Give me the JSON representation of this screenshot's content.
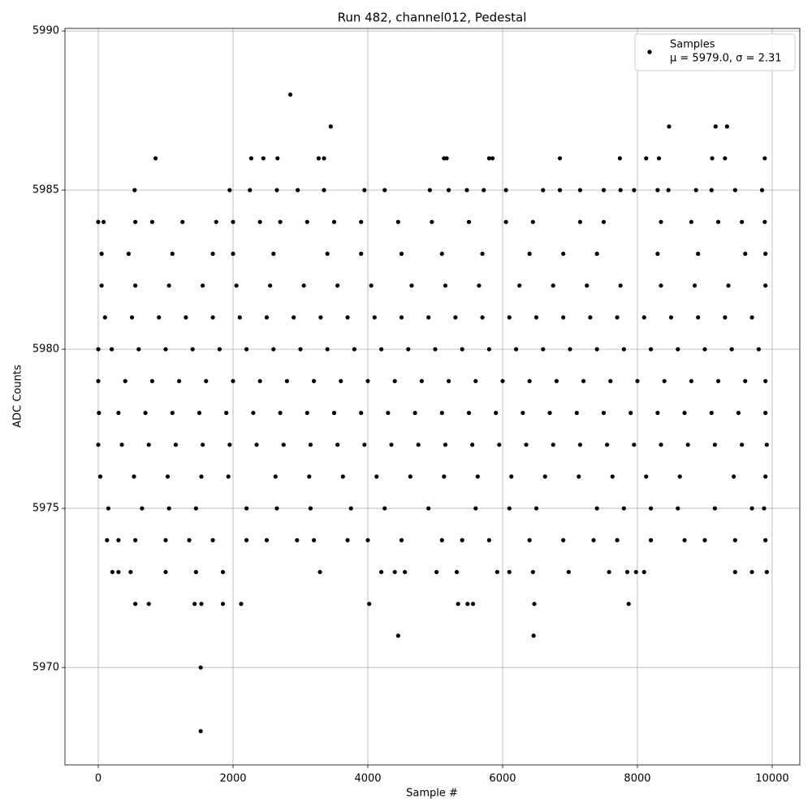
{
  "chart_data": {
    "type": "scatter",
    "title": "Run 482, channel012, Pedestal",
    "x_label": "Sample #",
    "y_label": "ADC Counts",
    "xlim": [
      -494,
      10410
    ],
    "ylim": [
      5966.94,
      5990.08
    ],
    "xticks": [
      0,
      2000,
      4000,
      6000,
      8000,
      10000
    ],
    "yticks": [
      5970,
      5975,
      5980,
      5985,
      5990
    ],
    "grid": true,
    "legend": "upper right",
    "stats_label": "μ = 5979.0, σ = 2.31",
    "x": [
      0,
      400,
      800,
      1200,
      1600,
      2000,
      2400,
      2800,
      3200,
      3600,
      4000,
      4400,
      4800,
      5200,
      5600,
      6000,
      6400,
      6800,
      7200,
      7600,
      8000,
      8400,
      8800,
      9200,
      9600,
      9900,
      0,
      200,
      600,
      1000,
      1400,
      1800,
      2200,
      2600,
      3000,
      3400,
      3800,
      4200,
      4600,
      5000,
      5400,
      5800,
      6200,
      6600,
      7000,
      7400,
      7800,
      8200,
      8600,
      9000,
      9400,
      9800,
      100,
      500,
      900,
      1300,
      1700,
      2100,
      2500,
      2900,
      3300,
      3700,
      4100,
      4500,
      4900,
      5300,
      5700,
      6100,
      6500,
      6900,
      7300,
      7700,
      8100,
      8500,
      8900,
      9300,
      9700,
      10,
      300,
      700,
      1100,
      1500,
      1900,
      2300,
      2700,
      3100,
      3500,
      3900,
      4300,
      4700,
      5100,
      5500,
      5900,
      6300,
      6700,
      7100,
      7500,
      7900,
      8300,
      8700,
      9100,
      9500,
      9900,
      0,
      350,
      750,
      1150,
      1550,
      1950,
      2350,
      2750,
      3150,
      3550,
      3950,
      4350,
      4750,
      5150,
      5550,
      5950,
      6350,
      6750,
      7150,
      7550,
      7950,
      8350,
      8750,
      9150,
      9550,
      9920,
      50,
      550,
      1050,
      1550,
      2050,
      2550,
      3050,
      3550,
      4050,
      4650,
      5150,
      5650,
      6250,
      6750,
      7250,
      7750,
      8350,
      8850,
      9350,
      9900,
      30,
      530,
      1030,
      1530,
      1930,
      2630,
      3130,
      3630,
      4130,
      4630,
      5130,
      5630,
      6130,
      6630,
      7130,
      7630,
      8130,
      8630,
      9430,
      9900,
      50,
      450,
      1100,
      1700,
      2000,
      2600,
      3400,
      3900,
      4500,
      5100,
      5700,
      6400,
      6900,
      7400,
      8300,
      8900,
      9600,
      9900,
      150,
      650,
      1050,
      1450,
      2200,
      2650,
      3150,
      3750,
      4250,
      4900,
      5600,
      6100,
      6500,
      7400,
      7800,
      8200,
      8600,
      9150,
      9700,
      9880,
      0,
      80,
      550,
      800,
      1250,
      1750,
      2000,
      2400,
      2700,
      3100,
      3500,
      3900,
      4450,
      4950,
      5500,
      6050,
      6450,
      7150,
      7500,
      8350,
      8800,
      9200,
      9550,
      9890,
      130,
      300,
      550,
      1000,
      1350,
      1700,
      2200,
      2500,
      2950,
      3200,
      3700,
      4000,
      4500,
      5100,
      5400,
      5800,
      6400,
      6900,
      7350,
      7700,
      8200,
      8700,
      9000,
      9450,
      9900,
      540,
      1950,
      2250,
      2650,
      2960,
      3350,
      3950,
      4250,
      4920,
      5200,
      5470,
      5720,
      6050,
      6600,
      6850,
      7150,
      7500,
      7750,
      7950,
      8300,
      8460,
      8870,
      9100,
      9450,
      9850,
      210,
      300,
      480,
      1000,
      1450,
      1850,
      3290,
      4200,
      4400,
      4550,
      5020,
      5320,
      5920,
      6100,
      6450,
      6980,
      7580,
      7850,
      7980,
      8100,
      9450,
      9700,
      9920,
      550,
      750,
      1430,
      1530,
      1850,
      2120,
      4020,
      5340,
      5480,
      5560,
      6470,
      7870,
      850,
      2270,
      2450,
      2660,
      3270,
      3350,
      5130,
      5170,
      5800,
      5850,
      6850,
      7740,
      8130,
      8320,
      9110,
      9300,
      9890,
      3450,
      8470,
      9160,
      9330,
      2850,
      4450,
      6460,
      1520,
      1520
    ],
    "series": [
      {
        "name": "Samples",
        "color": "#000000",
        "values": [
          5979,
          5979,
          5979,
          5979,
          5979,
          5979,
          5979,
          5979,
          5979,
          5979,
          5979,
          5979,
          5979,
          5979,
          5979,
          5979,
          5979,
          5979,
          5979,
          5979,
          5979,
          5979,
          5979,
          5979,
          5979,
          5979,
          5980,
          5980,
          5980,
          5980,
          5980,
          5980,
          5980,
          5980,
          5980,
          5980,
          5980,
          5980,
          5980,
          5980,
          5980,
          5980,
          5980,
          5980,
          5980,
          5980,
          5980,
          5980,
          5980,
          5980,
          5980,
          5980,
          5981,
          5981,
          5981,
          5981,
          5981,
          5981,
          5981,
          5981,
          5981,
          5981,
          5981,
          5981,
          5981,
          5981,
          5981,
          5981,
          5981,
          5981,
          5981,
          5981,
          5981,
          5981,
          5981,
          5981,
          5981,
          5978,
          5978,
          5978,
          5978,
          5978,
          5978,
          5978,
          5978,
          5978,
          5978,
          5978,
          5978,
          5978,
          5978,
          5978,
          5978,
          5978,
          5978,
          5978,
          5978,
          5978,
          5978,
          5978,
          5978,
          5978,
          5978,
          5977,
          5977,
          5977,
          5977,
          5977,
          5977,
          5977,
          5977,
          5977,
          5977,
          5977,
          5977,
          5977,
          5977,
          5977,
          5977,
          5977,
          5977,
          5977,
          5977,
          5977,
          5977,
          5977,
          5977,
          5977,
          5977,
          5982,
          5982,
          5982,
          5982,
          5982,
          5982,
          5982,
          5982,
          5982,
          5982,
          5982,
          5982,
          5982,
          5982,
          5982,
          5982,
          5982,
          5982,
          5982,
          5982,
          5976,
          5976,
          5976,
          5976,
          5976,
          5976,
          5976,
          5976,
          5976,
          5976,
          5976,
          5976,
          5976,
          5976,
          5976,
          5976,
          5976,
          5976,
          5976,
          5976,
          5983,
          5983,
          5983,
          5983,
          5983,
          5983,
          5983,
          5983,
          5983,
          5983,
          5983,
          5983,
          5983,
          5983,
          5983,
          5983,
          5983,
          5983,
          5975,
          5975,
          5975,
          5975,
          5975,
          5975,
          5975,
          5975,
          5975,
          5975,
          5975,
          5975,
          5975,
          5975,
          5975,
          5975,
          5975,
          5975,
          5975,
          5975,
          5984,
          5984,
          5984,
          5984,
          5984,
          5984,
          5984,
          5984,
          5984,
          5984,
          5984,
          5984,
          5984,
          5984,
          5984,
          5984,
          5984,
          5984,
          5984,
          5984,
          5984,
          5984,
          5984,
          5984,
          5974,
          5974,
          5974,
          5974,
          5974,
          5974,
          5974,
          5974,
          5974,
          5974,
          5974,
          5974,
          5974,
          5974,
          5974,
          5974,
          5974,
          5974,
          5974,
          5974,
          5974,
          5974,
          5974,
          5974,
          5974,
          5985,
          5985,
          5985,
          5985,
          5985,
          5985,
          5985,
          5985,
          5985,
          5985,
          5985,
          5985,
          5985,
          5985,
          5985,
          5985,
          5985,
          5985,
          5985,
          5985,
          5985,
          5985,
          5985,
          5985,
          5985,
          5973,
          5973,
          5973,
          5973,
          5973,
          5973,
          5973,
          5973,
          5973,
          5973,
          5973,
          5973,
          5973,
          5973,
          5973,
          5973,
          5973,
          5973,
          5973,
          5973,
          5973,
          5973,
          5973,
          5972,
          5972,
          5972,
          5972,
          5972,
          5972,
          5972,
          5972,
          5972,
          5972,
          5972,
          5972,
          5986,
          5986,
          5986,
          5986,
          5986,
          5986,
          5986,
          5986,
          5986,
          5986,
          5986,
          5986,
          5986,
          5986,
          5986,
          5986,
          5986,
          5987,
          5987,
          5987,
          5987,
          5988,
          5971,
          5971,
          5970,
          5968
        ]
      }
    ]
  }
}
